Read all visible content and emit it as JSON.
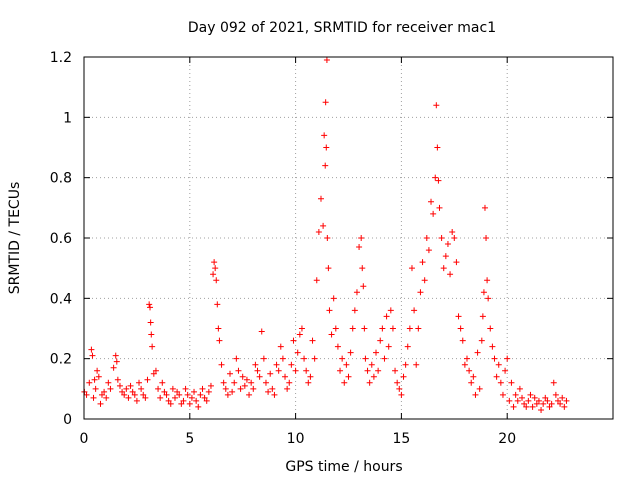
{
  "chart_data": {
    "type": "scatter",
    "title": "Day 092 of 2021, SRMTID for receiver mac1",
    "xlabel": "GPS time / hours",
    "ylabel": "SRMTID / TECUs",
    "xlim": [
      0,
      25
    ],
    "ylim": [
      0,
      1.2
    ],
    "xticks": [
      0,
      5,
      10,
      15,
      20
    ],
    "yticks": [
      0,
      0.2,
      0.4,
      0.6,
      0.8,
      1,
      1.2
    ],
    "xtick_labels": [
      "0",
      "5",
      "10",
      "15",
      "20"
    ],
    "ytick_labels": [
      "0",
      "0.2",
      "0.4",
      "0.6",
      "0.8",
      "1",
      "1.2"
    ],
    "grid": true,
    "marker": "+",
    "series": [
      {
        "name": "SRMTID",
        "color": "#ff0000",
        "x": [
          0.02,
          0.12,
          0.25,
          0.35,
          0.4,
          0.45,
          0.5,
          0.55,
          0.62,
          0.7,
          0.78,
          0.85,
          0.95,
          1.05,
          1.15,
          1.25,
          1.4,
          1.5,
          1.55,
          1.6,
          1.7,
          1.8,
          1.9,
          2.0,
          2.1,
          2.2,
          2.3,
          2.4,
          2.5,
          2.6,
          2.7,
          2.8,
          2.9,
          3.0,
          3.08,
          3.12,
          3.15,
          3.18,
          3.22,
          3.3,
          3.4,
          3.5,
          3.6,
          3.7,
          3.8,
          3.9,
          4.0,
          4.1,
          4.2,
          4.3,
          4.4,
          4.5,
          4.6,
          4.7,
          4.8,
          4.9,
          5.0,
          5.1,
          5.2,
          5.3,
          5.4,
          5.5,
          5.6,
          5.7,
          5.8,
          5.9,
          6.0,
          6.1,
          6.15,
          6.2,
          6.25,
          6.3,
          6.35,
          6.4,
          6.5,
          6.6,
          6.7,
          6.8,
          6.9,
          7.0,
          7.1,
          7.2,
          7.3,
          7.4,
          7.5,
          7.6,
          7.7,
          7.8,
          7.9,
          8.0,
          8.1,
          8.2,
          8.3,
          8.4,
          8.5,
          8.6,
          8.7,
          8.8,
          8.9,
          9.0,
          9.1,
          9.2,
          9.3,
          9.4,
          9.5,
          9.6,
          9.7,
          9.8,
          9.9,
          10.0,
          10.1,
          10.2,
          10.3,
          10.4,
          10.5,
          10.6,
          10.7,
          10.8,
          10.9,
          11.0,
          11.1,
          11.2,
          11.3,
          11.35,
          11.4,
          11.42,
          11.45,
          11.48,
          11.5,
          11.55,
          11.6,
          11.7,
          11.8,
          11.9,
          12.0,
          12.1,
          12.2,
          12.3,
          12.4,
          12.5,
          12.6,
          12.7,
          12.8,
          12.9,
          13.0,
          13.1,
          13.15,
          13.2,
          13.25,
          13.3,
          13.4,
          13.5,
          13.6,
          13.7,
          13.8,
          13.9,
          14.0,
          14.1,
          14.2,
          14.3,
          14.4,
          14.5,
          14.6,
          14.7,
          14.8,
          14.9,
          15.0,
          15.1,
          15.2,
          15.3,
          15.4,
          15.5,
          15.6,
          15.7,
          15.8,
          15.9,
          16.0,
          16.1,
          16.2,
          16.3,
          16.4,
          16.5,
          16.6,
          16.65,
          16.7,
          16.75,
          16.8,
          16.9,
          17.0,
          17.1,
          17.2,
          17.3,
          17.4,
          17.5,
          17.6,
          17.7,
          17.8,
          17.9,
          18.0,
          18.1,
          18.2,
          18.3,
          18.4,
          18.5,
          18.6,
          18.7,
          18.8,
          18.85,
          18.9,
          18.95,
          19.0,
          19.05,
          19.1,
          19.2,
          19.3,
          19.4,
          19.5,
          19.6,
          19.7,
          19.8,
          19.9,
          20.0,
          20.1,
          20.2,
          20.3,
          20.4,
          20.5,
          20.6,
          20.7,
          20.8,
          20.9,
          21.0,
          21.1,
          21.2,
          21.3,
          21.4,
          21.5,
          21.6,
          21.7,
          21.8,
          21.9,
          22.0,
          22.1,
          22.2,
          22.3,
          22.4,
          22.5,
          22.6,
          22.7,
          22.8
        ],
        "y": [
          0.09,
          0.08,
          0.12,
          0.23,
          0.21,
          0.07,
          0.13,
          0.1,
          0.16,
          0.14,
          0.05,
          0.08,
          0.09,
          0.07,
          0.12,
          0.1,
          0.17,
          0.21,
          0.19,
          0.13,
          0.11,
          0.09,
          0.08,
          0.1,
          0.07,
          0.11,
          0.09,
          0.08,
          0.06,
          0.12,
          0.1,
          0.08,
          0.07,
          0.13,
          0.38,
          0.37,
          0.32,
          0.28,
          0.24,
          0.15,
          0.16,
          0.1,
          0.07,
          0.12,
          0.09,
          0.08,
          0.06,
          0.05,
          0.1,
          0.07,
          0.09,
          0.08,
          0.05,
          0.06,
          0.1,
          0.08,
          0.05,
          0.07,
          0.09,
          0.06,
          0.04,
          0.08,
          0.1,
          0.07,
          0.06,
          0.09,
          0.11,
          0.48,
          0.52,
          0.5,
          0.46,
          0.38,
          0.3,
          0.26,
          0.18,
          0.12,
          0.1,
          0.08,
          0.15,
          0.09,
          0.12,
          0.2,
          0.16,
          0.1,
          0.14,
          0.11,
          0.13,
          0.08,
          0.12,
          0.1,
          0.18,
          0.16,
          0.14,
          0.29,
          0.2,
          0.12,
          0.09,
          0.15,
          0.1,
          0.08,
          0.18,
          0.16,
          0.24,
          0.2,
          0.14,
          0.1,
          0.12,
          0.18,
          0.26,
          0.16,
          0.22,
          0.28,
          0.3,
          0.2,
          0.16,
          0.12,
          0.14,
          0.26,
          0.2,
          0.46,
          0.62,
          0.73,
          0.64,
          0.94,
          0.84,
          1.05,
          0.9,
          1.19,
          0.6,
          0.5,
          0.36,
          0.28,
          0.4,
          0.3,
          0.24,
          0.16,
          0.2,
          0.12,
          0.18,
          0.14,
          0.22,
          0.3,
          0.36,
          0.42,
          0.57,
          0.6,
          0.5,
          0.44,
          0.3,
          0.2,
          0.16,
          0.12,
          0.18,
          0.14,
          0.22,
          0.16,
          0.26,
          0.3,
          0.2,
          0.34,
          0.24,
          0.36,
          0.3,
          0.16,
          0.12,
          0.1,
          0.08,
          0.14,
          0.18,
          0.24,
          0.3,
          0.5,
          0.36,
          0.18,
          0.3,
          0.42,
          0.52,
          0.46,
          0.6,
          0.56,
          0.72,
          0.68,
          0.8,
          1.04,
          0.9,
          0.79,
          0.7,
          0.6,
          0.5,
          0.54,
          0.58,
          0.48,
          0.62,
          0.6,
          0.52,
          0.34,
          0.3,
          0.26,
          0.18,
          0.2,
          0.16,
          0.12,
          0.14,
          0.08,
          0.22,
          0.1,
          0.26,
          0.34,
          0.42,
          0.7,
          0.6,
          0.46,
          0.4,
          0.3,
          0.24,
          0.2,
          0.14,
          0.18,
          0.12,
          0.08,
          0.16,
          0.2,
          0.06,
          0.12,
          0.04,
          0.08,
          0.06,
          0.1,
          0.07,
          0.05,
          0.04,
          0.06,
          0.08,
          0.04,
          0.07,
          0.05,
          0.06,
          0.03,
          0.05,
          0.07,
          0.06,
          0.04,
          0.05,
          0.12,
          0.08,
          0.06,
          0.05,
          0.07,
          0.04,
          0.06
        ]
      }
    ]
  }
}
